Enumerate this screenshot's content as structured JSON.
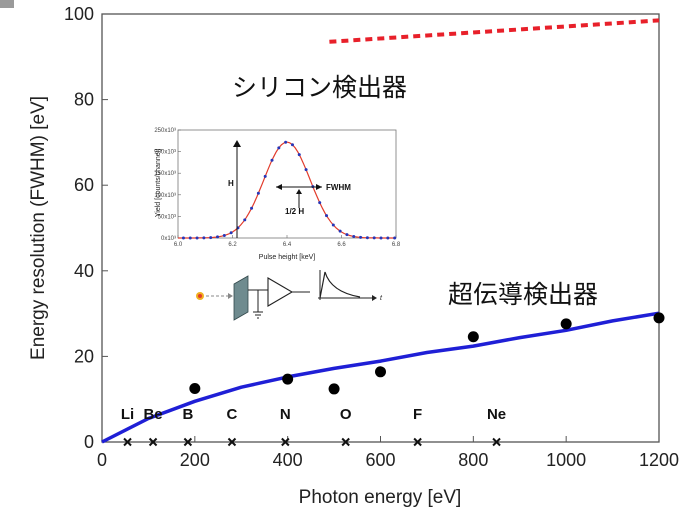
{
  "chart_data": {
    "type": "line",
    "xlabel": "Photon energy [eV]",
    "ylabel": "Energy resolution (FWHM) [eV]",
    "xlim": [
      0,
      1200
    ],
    "ylim": [
      0,
      100
    ],
    "x_ticks": [
      "0",
      "200",
      "400",
      "600",
      "800",
      "1000",
      "1200"
    ],
    "y_ticks": [
      "0",
      "20",
      "40",
      "60",
      "80",
      "100"
    ],
    "series": [
      {
        "name": "シリコン検出器",
        "style": "dashed",
        "color": "#e8202a",
        "x": [
          490,
          1200
        ],
        "y": [
          93.5,
          98.5
        ]
      },
      {
        "name": "超伝導検出器",
        "style": "solid",
        "color": "#1f1fd6",
        "x": [
          0,
          100,
          200,
          300,
          400,
          500,
          600,
          700,
          800,
          900,
          1000,
          1100,
          1200
        ],
        "y": [
          0,
          5.5,
          9.5,
          12.8,
          15.2,
          17.2,
          18.9,
          20.9,
          22.4,
          24.4,
          26.1,
          28.3,
          30.1
        ]
      },
      {
        "style": "markers",
        "color": "#000000",
        "x": [
          200,
          400,
          500,
          600,
          800,
          1000,
          1200
        ],
        "y": [
          12.5,
          14.7,
          12.4,
          16.4,
          24.6,
          27.6,
          29.0
        ]
      }
    ],
    "element_labels": [
      {
        "label": "Li",
        "x": 55
      },
      {
        "label": "Be",
        "x": 110
      },
      {
        "label": "B",
        "x": 185
      },
      {
        "label": "C",
        "x": 280
      },
      {
        "label": "N",
        "x": 395
      },
      {
        "label": "O",
        "x": 525
      },
      {
        "label": "F",
        "x": 680
      },
      {
        "label": "Ne",
        "x": 850
      }
    ],
    "element_label_y": 6.5,
    "annotations": {
      "silicon": "シリコン検出器",
      "superconducting": "超伝導検出器"
    },
    "inset": {
      "ylabel": "Yield [counts/channel]",
      "xlabel": "Pulse height [keV]",
      "x_ticks": [
        "6.0",
        "6.2",
        "6.4",
        "6.6",
        "6.8"
      ],
      "y_ticks": [
        "0x10³",
        "50x10³",
        "100x10³",
        "150x10³",
        "200x10³",
        "250x10³"
      ],
      "xlim": [
        6.0,
        6.8
      ],
      "ylim": [
        0,
        250000
      ],
      "peak_center": 6.4,
      "peak_height": 222000,
      "peak_sigma": 0.085,
      "H_label": "H",
      "half_label": "1/2 H",
      "fwhm_label": "FWHM",
      "t_label": "t"
    }
  }
}
